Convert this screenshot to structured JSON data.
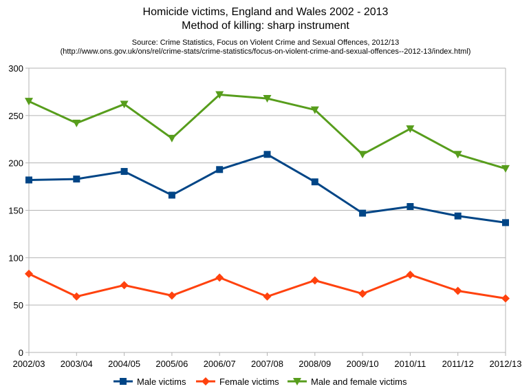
{
  "chart_data": {
    "type": "line",
    "title": "Homicide victims, England and Wales 2002 - 2013",
    "subtitle": "Method of killing: sharp instrument",
    "source": "Source: Crime Statistics, Focus on Violent Crime and Sexual Offences, 2012/13",
    "source_url": "(http://www.ons.gov.uk/ons/rel/crime-stats/crime-statistics/focus-on-violent-crime-and-sexual-offences--2012-13/index.html)",
    "xlabel": "",
    "ylabel": "",
    "ylim": [
      0,
      300
    ],
    "yticks": [
      0,
      50,
      100,
      150,
      200,
      250,
      300
    ],
    "grid": true,
    "legend_position": "bottom",
    "categories": [
      "2002/03",
      "2003/04",
      "2004/05",
      "2005/06",
      "2006/07",
      "2007/08",
      "2008/09",
      "2009/10",
      "2010/11",
      "2011/12",
      "2012/13"
    ],
    "series": [
      {
        "name": "Male victims",
        "color": "#004586",
        "marker": "square",
        "values": [
          182,
          183,
          191,
          166,
          193,
          209,
          180,
          147,
          154,
          144,
          137
        ]
      },
      {
        "name": "Female victims",
        "color": "#ff420e",
        "marker": "diamond",
        "values": [
          83,
          59,
          71,
          60,
          79,
          59,
          76,
          62,
          82,
          65,
          57
        ]
      },
      {
        "name": "Male and female victims",
        "color": "#579d1c",
        "marker": "triangle-down",
        "values": [
          265,
          242,
          262,
          226,
          272,
          268,
          256,
          209,
          236,
          209,
          194
        ]
      }
    ]
  }
}
